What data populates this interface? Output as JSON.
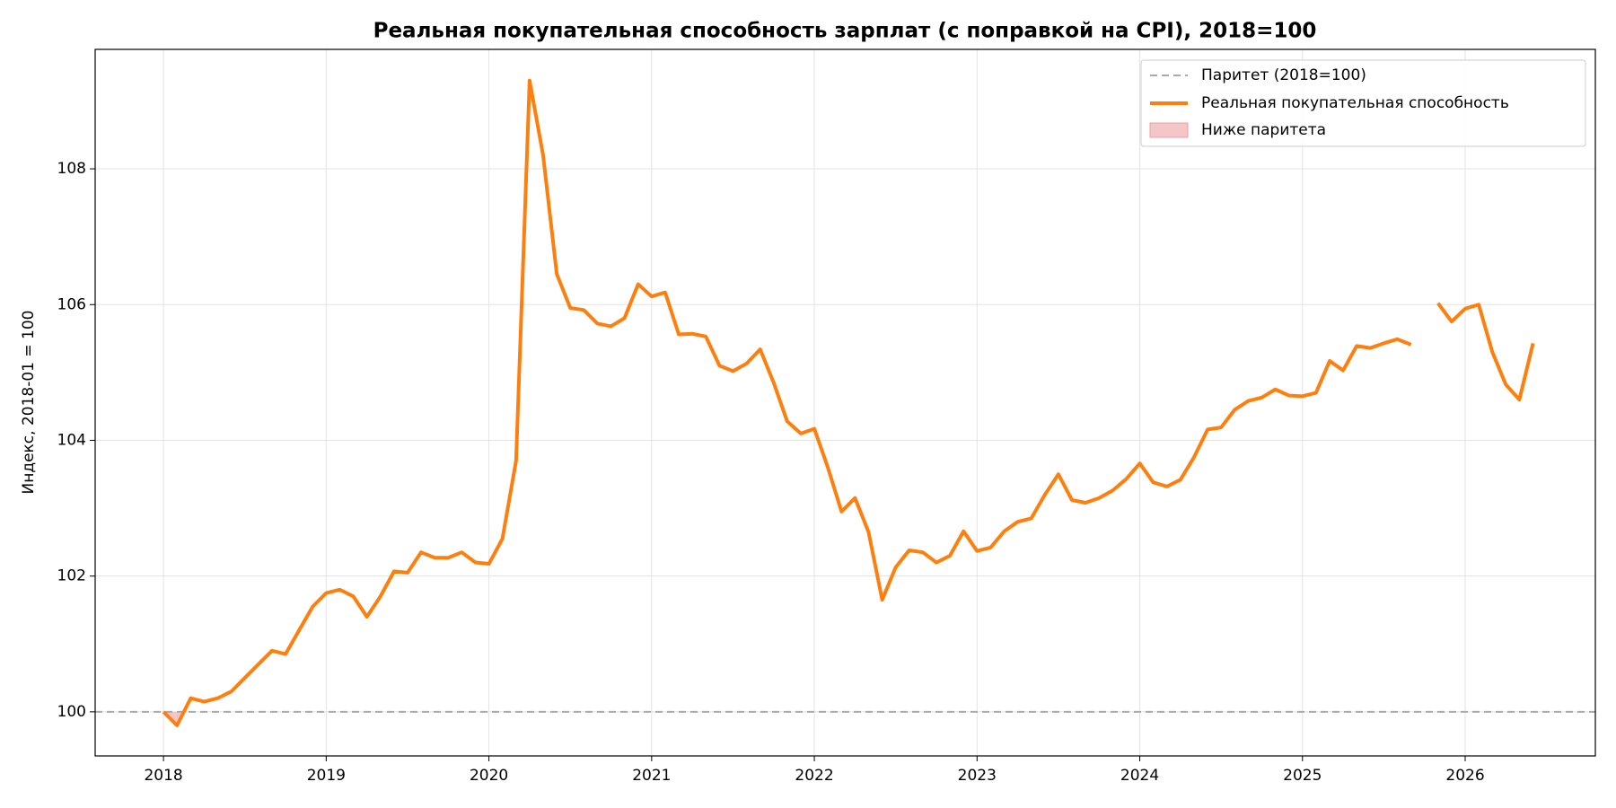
{
  "chart_data": {
    "type": "line",
    "title": "Реальная покупательная способность зарплат (с поправкой на CPI), 2018=100",
    "y_label": "Индекс, 2018-01 = 100",
    "x": [
      2018.0,
      2018.083,
      2018.167,
      2018.25,
      2018.333,
      2018.417,
      2018.5,
      2018.583,
      2018.667,
      2018.75,
      2018.833,
      2018.917,
      2019.0,
      2019.083,
      2019.167,
      2019.25,
      2019.333,
      2019.417,
      2019.5,
      2019.583,
      2019.667,
      2019.75,
      2019.833,
      2019.917,
      2020.0,
      2020.083,
      2020.167,
      2020.25,
      2020.333,
      2020.417,
      2020.5,
      2020.583,
      2020.667,
      2020.75,
      2020.833,
      2020.917,
      2021.0,
      2021.083,
      2021.167,
      2021.25,
      2021.333,
      2021.417,
      2021.5,
      2021.583,
      2021.667,
      2021.75,
      2021.833,
      2021.917,
      2022.0,
      2022.083,
      2022.167,
      2022.25,
      2022.333,
      2022.417,
      2022.5,
      2022.583,
      2022.667,
      2022.75,
      2022.833,
      2022.917,
      2023.0,
      2023.083,
      2023.167,
      2023.25,
      2023.333,
      2023.417,
      2023.5,
      2023.583,
      2023.667,
      2023.75,
      2023.833,
      2023.917,
      2024.0,
      2024.083,
      2024.167,
      2024.25,
      2024.333,
      2024.417,
      2024.5,
      2024.583,
      2024.667,
      2024.75,
      2024.833,
      2024.917,
      2025.0,
      2025.083,
      2025.167,
      2025.25,
      2025.333,
      2025.417,
      2025.5,
      2025.583,
      2025.667,
      2025.75,
      2025.833,
      2025.917,
      2026.0,
      2026.083,
      2026.167,
      2026.25,
      2026.333,
      2026.417
    ],
    "series": [
      {
        "name": "Реальная покупательная способность",
        "color": "#ff7f0e",
        "values": [
          100.0,
          99.8,
          100.2,
          100.15,
          100.2,
          100.3,
          100.5,
          100.7,
          100.9,
          100.85,
          101.2,
          101.55,
          101.75,
          101.8,
          101.7,
          101.4,
          101.7,
          102.07,
          102.05,
          102.35,
          102.27,
          102.27,
          102.35,
          102.2,
          102.18,
          102.55,
          103.7,
          109.3,
          108.2,
          106.45,
          105.95,
          105.92,
          105.72,
          105.68,
          105.8,
          106.3,
          106.12,
          106.18,
          105.56,
          105.57,
          105.53,
          105.1,
          105.02,
          105.13,
          105.34,
          104.85,
          104.28,
          104.1,
          104.17,
          103.6,
          102.95,
          103.15,
          102.65,
          101.65,
          102.13,
          102.38,
          102.35,
          102.2,
          102.3,
          102.66,
          102.37,
          102.42,
          102.66,
          102.8,
          102.85,
          103.2,
          103.5,
          103.12,
          103.08,
          103.15,
          103.26,
          103.43,
          103.66,
          103.38,
          103.32,
          103.42,
          103.75,
          104.16,
          104.19,
          104.45,
          104.58,
          104.63,
          104.75,
          104.66,
          104.65,
          104.7,
          105.17,
          105.03,
          105.39,
          105.36,
          105.43,
          105.49,
          105.41,
          null,
          106.02,
          105.75,
          105.94,
          106.0,
          105.3,
          104.82,
          104.6,
          105.43
        ]
      }
    ],
    "reference_line": {
      "name": "Паритет (2018=100)",
      "value": 100,
      "color": "#aaaaaa"
    },
    "below_fill": {
      "name": "Ниже паритета",
      "color": "#f4c6c8"
    },
    "xlim": [
      2017.58,
      2026.8
    ],
    "xticks": [
      2018,
      2019,
      2020,
      2021,
      2022,
      2023,
      2024,
      2025,
      2026
    ],
    "ylim": [
      99.35,
      109.76
    ],
    "yticks": [
      100,
      102,
      104,
      106,
      108
    ],
    "grid": true,
    "legend": "upper right"
  }
}
